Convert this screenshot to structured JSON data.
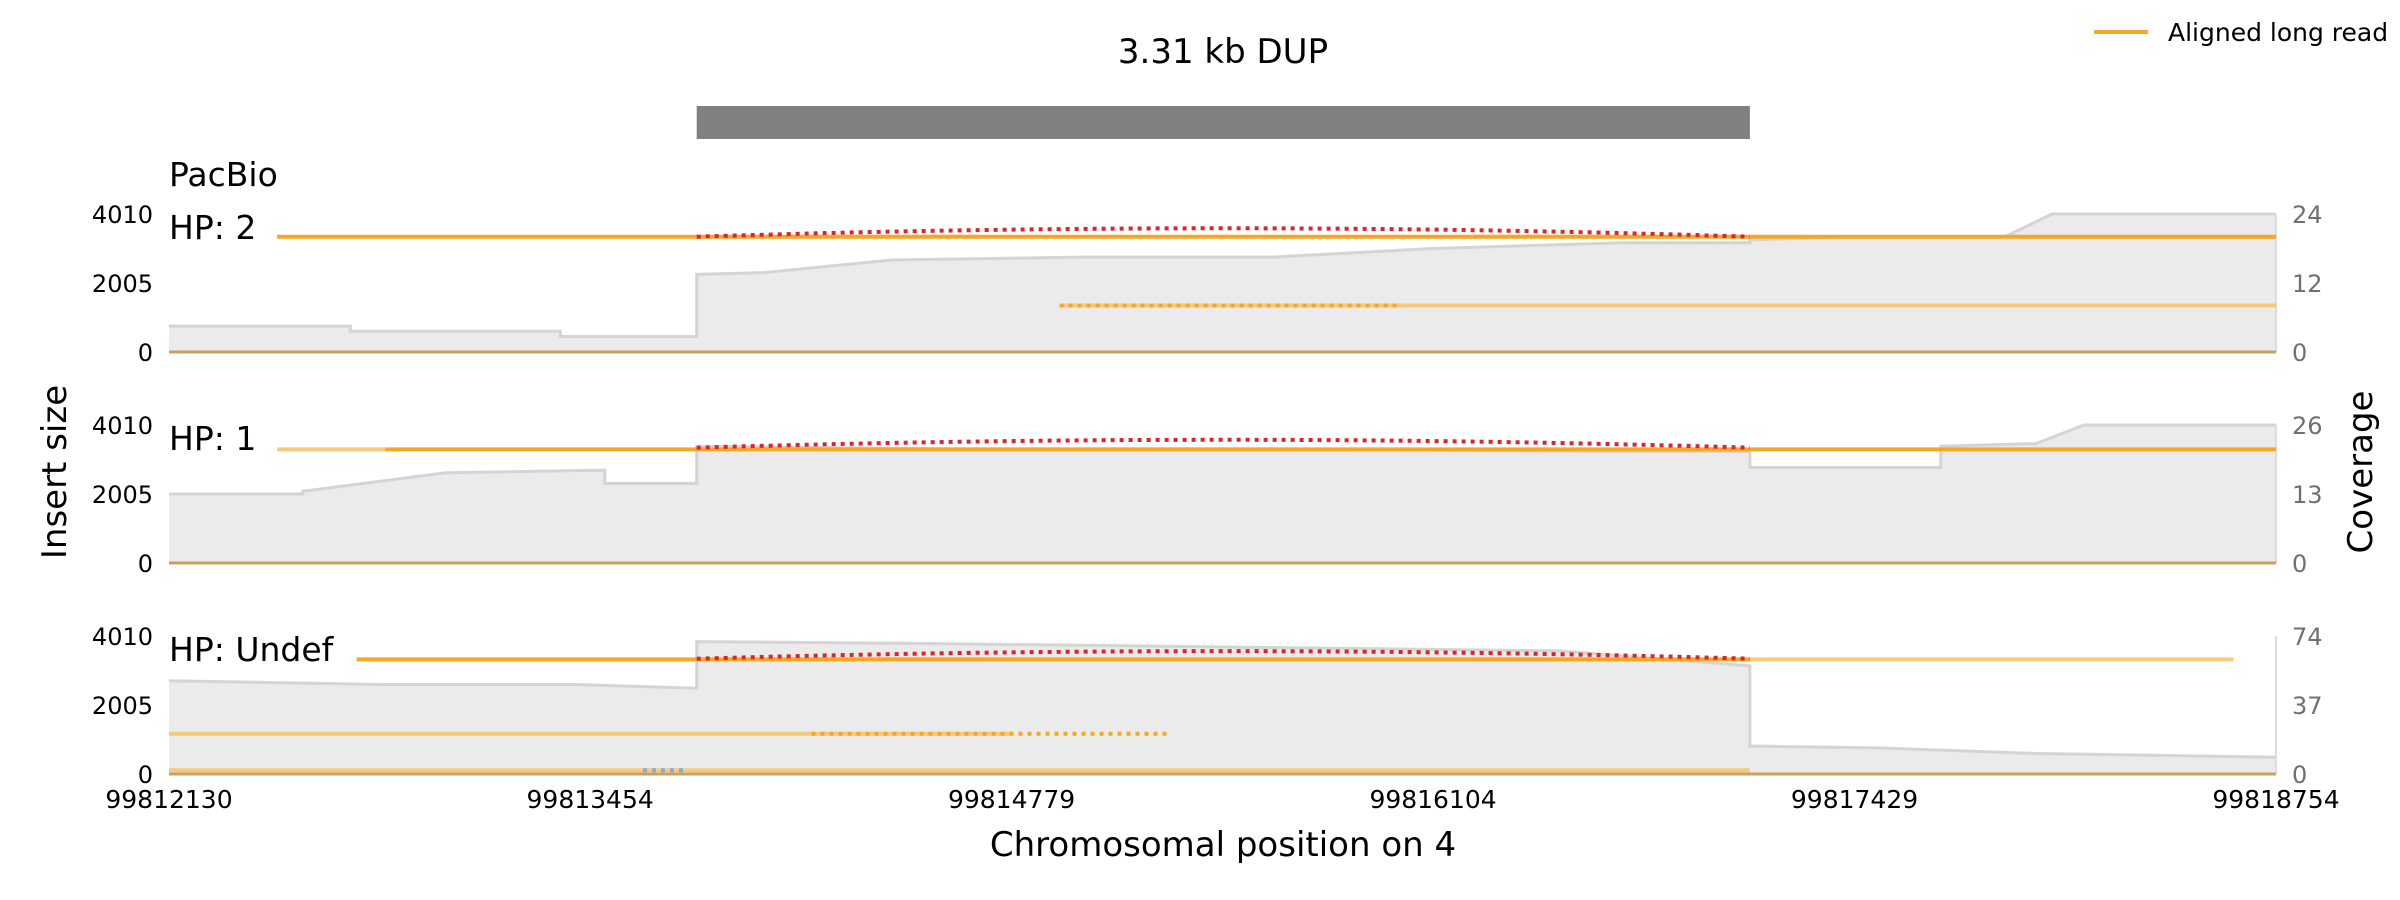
{
  "chart_data": {
    "type": "line",
    "title": "3.31 kb DUP",
    "xlabel": "Chromosomal position on 4",
    "ylabel_left": "Insert size",
    "ylabel_right": "Coverage",
    "platform": "PacBio",
    "xlim": [
      99812130,
      99818754
    ],
    "x_ticks": [
      "99812130",
      "99813454",
      "99814779",
      "99816104",
      "99817429",
      "99818754"
    ],
    "sv_region": [
      99813789,
      99817100
    ],
    "legend": {
      "label": "Aligned long read",
      "position": "top-right"
    },
    "colors": {
      "read": "#f5a623",
      "read_light": "#f7c97a",
      "split": "#d9262c",
      "coverage_fill": "#ebebeb",
      "coverage_line": "#d4d4d4",
      "sv_bar": "#808080",
      "baseline": "#c8a060"
    },
    "panels": [
      {
        "label": "HP: 2",
        "insert_ticks": [
          "0",
          "2005",
          "4010"
        ],
        "coverage_ticks": [
          "0",
          "12",
          "24"
        ],
        "coverage_max": 24,
        "coverage": [
          [
            99812130,
            4.5
          ],
          [
            99812700,
            4.5
          ],
          [
            99812700,
            3.6
          ],
          [
            99813360,
            3.6
          ],
          [
            99813360,
            2.7
          ],
          [
            99813789,
            2.7
          ],
          [
            99813789,
            13.5
          ],
          [
            99814000,
            13.8
          ],
          [
            99814400,
            16
          ],
          [
            99815000,
            16.5
          ],
          [
            99815600,
            16.5
          ],
          [
            99816100,
            18
          ],
          [
            99816700,
            19
          ],
          [
            99817100,
            19
          ],
          [
            99817100,
            19.5
          ],
          [
            99817400,
            20
          ],
          [
            99817900,
            20
          ],
          [
            99818050,
            24
          ],
          [
            99818754,
            24
          ]
        ],
        "reads": [
          {
            "start": 99812470,
            "end": 99813789,
            "y": 3350,
            "style": "solid"
          },
          {
            "start": 99813789,
            "end": 99817100,
            "y": 3350,
            "style": "solid"
          },
          {
            "start": 99817100,
            "end": 99818754,
            "y": 3350,
            "style": "solid"
          },
          {
            "start": 99814930,
            "end": 99818754,
            "y": 1350,
            "style": "light"
          }
        ],
        "dotted": [
          {
            "start": 99813789,
            "end": 99817100,
            "y": 3550,
            "color": "split",
            "arc": true
          },
          {
            "start": 99814930,
            "end": 99816000,
            "y": 1350,
            "color": "read",
            "arc": false
          }
        ]
      },
      {
        "label": "HP: 1",
        "insert_ticks": [
          "0",
          "2005",
          "4010"
        ],
        "coverage_ticks": [
          "0",
          "13",
          "26"
        ],
        "coverage_max": 26,
        "coverage": [
          [
            99812130,
            13
          ],
          [
            99812550,
            13
          ],
          [
            99812550,
            13.5
          ],
          [
            99813000,
            17
          ],
          [
            99813500,
            17.5
          ],
          [
            99813500,
            15
          ],
          [
            99813789,
            15
          ],
          [
            99813789,
            22
          ],
          [
            99814600,
            21.5
          ],
          [
            99815600,
            21.5
          ],
          [
            99816700,
            21
          ],
          [
            99817100,
            21
          ],
          [
            99817100,
            18
          ],
          [
            99817700,
            18
          ],
          [
            99817700,
            22
          ],
          [
            99818000,
            22.5
          ],
          [
            99818150,
            26
          ],
          [
            99818754,
            26
          ]
        ],
        "reads": [
          {
            "start": 99812470,
            "end": 99812810,
            "y": 3300,
            "style": "light"
          },
          {
            "start": 99812810,
            "end": 99813789,
            "y": 3300,
            "style": "solid"
          },
          {
            "start": 99813789,
            "end": 99817100,
            "y": 3300,
            "style": "solid"
          },
          {
            "start": 99817100,
            "end": 99818754,
            "y": 3300,
            "style": "solid"
          }
        ],
        "dotted": [
          {
            "start": 99813789,
            "end": 99817100,
            "y": 3520,
            "color": "split",
            "arc": true
          }
        ]
      },
      {
        "label": "HP: Undef",
        "insert_ticks": [
          "0",
          "2005",
          "4010"
        ],
        "coverage_ticks": [
          "0",
          "37",
          "74"
        ],
        "coverage_max": 74,
        "coverage": [
          [
            99812130,
            50
          ],
          [
            99812800,
            48
          ],
          [
            99813400,
            48
          ],
          [
            99813789,
            46
          ],
          [
            99813789,
            71
          ],
          [
            99814500,
            70
          ],
          [
            99815500,
            68
          ],
          [
            99816500,
            66
          ],
          [
            99817100,
            58
          ],
          [
            99817100,
            15
          ],
          [
            99817500,
            14
          ],
          [
            99818000,
            11
          ],
          [
            99818754,
            9
          ]
        ],
        "reads": [
          {
            "start": 99812720,
            "end": 99813789,
            "y": 3330,
            "style": "solid"
          },
          {
            "start": 99813789,
            "end": 99817100,
            "y": 3330,
            "style": "solid"
          },
          {
            "start": 99817100,
            "end": 99818620,
            "y": 3330,
            "style": "light"
          },
          {
            "start": 99812130,
            "end": 99814780,
            "y": 1170,
            "style": "light"
          },
          {
            "start": 99812130,
            "end": 99817100,
            "y": 110,
            "style": "light"
          }
        ],
        "dotted": [
          {
            "start": 99813789,
            "end": 99817100,
            "y": 3500,
            "color": "split",
            "arc": true
          },
          {
            "start": 99814150,
            "end": 99815270,
            "y": 1170,
            "color": "read",
            "arc": false
          },
          {
            "start": 99813620,
            "end": 99813760,
            "y": 110,
            "color": "blue",
            "arc": false
          }
        ]
      }
    ]
  }
}
